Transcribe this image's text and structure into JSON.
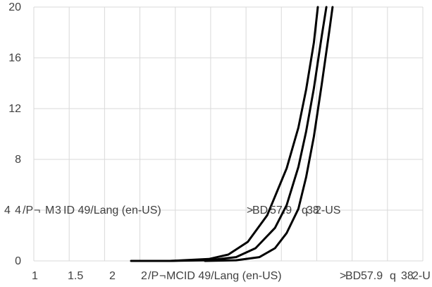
{
  "chart_data": {
    "type": "line",
    "title": "",
    "xlabel": "",
    "ylabel": "",
    "xlim": [
      1,
      6
    ],
    "ylim": [
      0,
      20
    ],
    "grid": true,
    "x_tick_labels": [
      "1",
      "1.5",
      "2",
      "2",
      "/P",
      "¬",
      "MCID 49/Lang (en-US)",
      ">",
      "BD",
      "57.9",
      "q",
      "38",
      "2-U"
    ],
    "y_tick_labels": [
      "0",
      "4",
      "8",
      "12",
      "16",
      "20"
    ],
    "overlay_text": [
      "4",
      "/P",
      "¬",
      "M",
      "3",
      "ID 49/Lang (en-US)",
      ">",
      "BD",
      "57.9",
      "q",
      "38",
      "2-US"
    ],
    "series": [
      {
        "x": [
          2.25,
          2.75,
          3.25,
          3.5,
          3.75,
          4.0,
          4.25,
          4.4,
          4.5,
          4.6,
          4.65
        ],
        "y": [
          0.0,
          0.0,
          0.15,
          0.5,
          1.5,
          3.6,
          7.3,
          10.5,
          13.5,
          17.2,
          20.0
        ]
      },
      {
        "x": [
          2.75,
          3.25,
          3.6,
          3.85,
          4.1,
          4.25,
          4.4,
          4.5,
          4.6,
          4.7,
          4.76
        ],
        "y": [
          0.0,
          0.05,
          0.3,
          1.0,
          2.6,
          4.4,
          7.4,
          10.2,
          13.6,
          17.7,
          20.0
        ]
      },
      {
        "x": [
          3.2,
          3.6,
          3.9,
          4.1,
          4.25,
          4.4,
          4.5,
          4.6,
          4.7,
          4.8,
          4.84
        ],
        "y": [
          0.0,
          0.05,
          0.3,
          1.0,
          2.2,
          4.1,
          6.6,
          9.8,
          13.9,
          18.2,
          20.0
        ]
      }
    ]
  }
}
